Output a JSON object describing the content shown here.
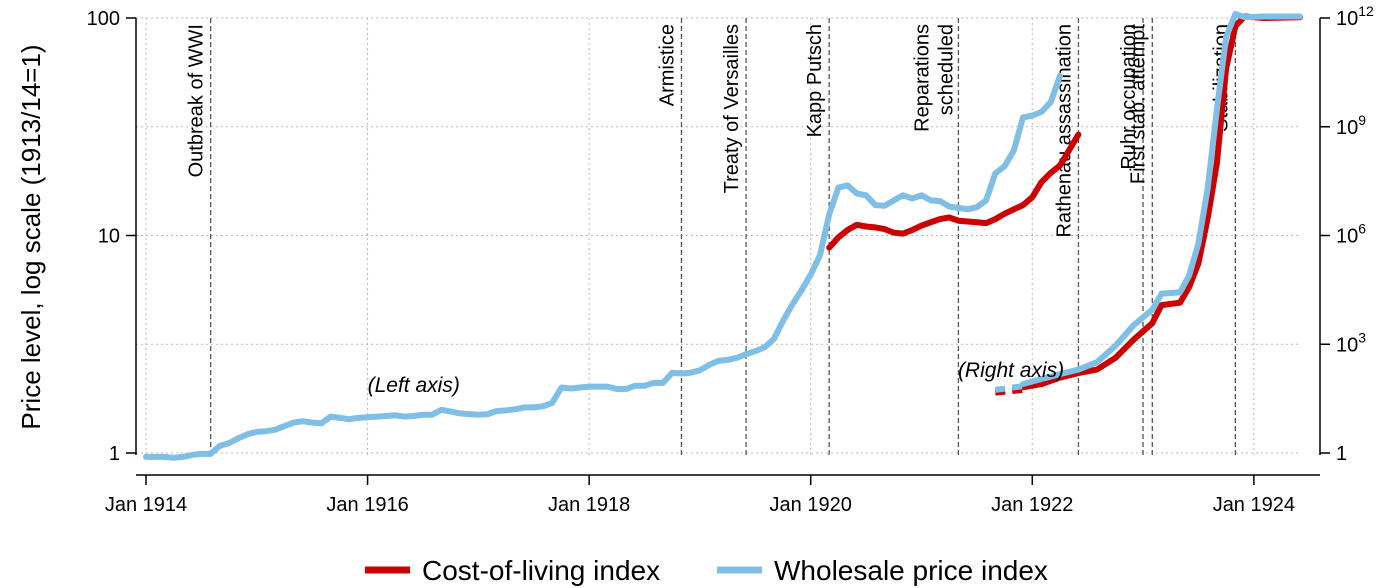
{
  "chart_data": {
    "type": "line",
    "ylabel": "Price level, log scale (1913/14=1)",
    "x_range": [
      "1914-01",
      "1924-06"
    ],
    "x_ticks": [
      {
        "date": "1914-01",
        "label": "Jan 1914"
      },
      {
        "date": "1916-01",
        "label": "Jan 1916"
      },
      {
        "date": "1918-01",
        "label": "Jan 1918"
      },
      {
        "date": "1920-01",
        "label": "Jan 1920"
      },
      {
        "date": "1922-01",
        "label": "Jan 1922"
      },
      {
        "date": "1924-01",
        "label": "Jan 1924"
      }
    ],
    "left_axis": {
      "scale": "log",
      "range": [
        1,
        100
      ],
      "ticks": [
        {
          "value": 1,
          "label": "1"
        },
        {
          "value": 10,
          "label": "10"
        },
        {
          "value": 100,
          "label": "100"
        }
      ]
    },
    "right_axis": {
      "scale": "log",
      "range": [
        1,
        1000000000000
      ],
      "ticks": [
        {
          "value": 1,
          "base": "1",
          "exp": ""
        },
        {
          "value": 1000,
          "base": "10",
          "exp": "3"
        },
        {
          "value": 1000000,
          "base": "10",
          "exp": "6"
        },
        {
          "value": 1000000000,
          "base": "10",
          "exp": "9"
        },
        {
          "value": 1000000000000,
          "base": "10",
          "exp": "12"
        }
      ]
    },
    "grid": true,
    "legend_position": "bottom",
    "events": [
      {
        "date": "1914-08",
        "label": "Outbreak of WWI"
      },
      {
        "date": "1918-11",
        "label": "Armistice"
      },
      {
        "date": "1919-06",
        "label": "Treaty of Versailles"
      },
      {
        "date": "1920-03",
        "label": "Kapp Putsch"
      },
      {
        "date": "1921-05",
        "label": "Reparations|scheduled"
      },
      {
        "date": "1922-06",
        "label": "Rathenau assassination"
      },
      {
        "date": "1923-01",
        "label": "Ruhr occupation"
      },
      {
        "date": "1923-02",
        "label": "First stab. attempt"
      },
      {
        "date": "1923-11",
        "label": "Stabilization"
      }
    ],
    "annotations": [
      {
        "text": "(Left axis)",
        "date": "1916-06",
        "value": 2.0
      },
      {
        "text": "(Right axis)",
        "date": "1922-00",
        "value": 2.0
      }
    ],
    "series": [
      {
        "name": "Cost-of-living index",
        "color": "#cc0000",
        "segments": [
          {
            "axis": "left",
            "style": "solid",
            "points": [
              [
                "1920-03",
                8.8
              ],
              [
                "1920-04",
                9.8
              ],
              [
                "1920-05",
                10.6
              ],
              [
                "1920-06",
                11.2
              ],
              [
                "1920-07",
                11.0
              ],
              [
                "1920-08",
                10.9
              ],
              [
                "1920-09",
                10.7
              ],
              [
                "1920-10",
                10.3
              ],
              [
                "1920-11",
                10.2
              ],
              [
                "1920-12",
                10.6
              ],
              [
                "1921-01",
                11.1
              ],
              [
                "1921-02",
                11.5
              ],
              [
                "1921-03",
                11.9
              ],
              [
                "1921-04",
                12.1
              ],
              [
                "1921-05",
                11.7
              ],
              [
                "1921-06",
                11.6
              ],
              [
                "1921-07",
                11.5
              ],
              [
                "1921-08",
                11.4
              ],
              [
                "1921-09",
                11.9
              ],
              [
                "1921-10",
                12.6
              ],
              [
                "1921-11",
                13.2
              ],
              [
                "1921-12",
                13.8
              ],
              [
                "1922-01",
                15.0
              ],
              [
                "1922-02",
                17.6
              ],
              [
                "1922-03",
                19.4
              ],
              [
                "1922-04",
                21.0
              ],
              [
                "1922-05",
                24.7
              ],
              [
                "1922-06",
                29.1
              ]
            ]
          },
          {
            "axis": "right",
            "style": "dashed",
            "points": [
              [
                "1921-09",
                46
              ],
              [
                "1921-12",
                55
              ]
            ]
          },
          {
            "axis": "right",
            "style": "solid",
            "points": [
              [
                "1922-00",
                65
              ],
              [
                "1922-02",
                80
              ],
              [
                "1922-04",
                120
              ],
              [
                "1922-06",
                160
              ],
              [
                "1922-08",
                200
              ],
              [
                "1922-10",
                420
              ],
              [
                "1922-12",
                1350
              ],
              [
                "1923-02",
                3800
              ],
              [
                "1923-03",
                12000
              ],
              [
                "1923-05",
                14000
              ],
              [
                "1923-06",
                38000
              ],
              [
                "1923-07",
                170000
              ],
              [
                "1923-08",
                3000000
              ],
              [
                "1923-09",
                100000000
              ],
              [
                "1923-10",
                40000000000
              ],
              [
                "1923-11",
                600000000000
              ],
              [
                "1923-12",
                1100000000000
              ],
              [
                "1924-02",
                1000000000000
              ],
              [
                "1924-06",
                1050000000000
              ]
            ]
          }
        ]
      },
      {
        "name": "Wholesale price index",
        "color": "#7fbfe6",
        "segments": [
          {
            "axis": "left",
            "style": "solid",
            "points": [
              [
                "1914-01",
                0.96
              ],
              [
                "1914-02",
                0.96
              ],
              [
                "1914-03",
                0.96
              ],
              [
                "1914-04",
                0.95
              ],
              [
                "1914-05",
                0.96
              ],
              [
                "1914-06",
                0.98
              ],
              [
                "1914-07",
                0.99
              ],
              [
                "1914-08",
                0.99
              ],
              [
                "1914-09",
                1.08
              ],
              [
                "1914-10",
                1.11
              ],
              [
                "1914-11",
                1.17
              ],
              [
                "1914-12",
                1.22
              ],
              [
                "1915-01",
                1.25
              ],
              [
                "1915-02",
                1.26
              ],
              [
                "1915-03",
                1.28
              ],
              [
                "1915-04",
                1.33
              ],
              [
                "1915-05",
                1.38
              ],
              [
                "1915-06",
                1.4
              ],
              [
                "1915-07",
                1.38
              ],
              [
                "1915-08",
                1.37
              ],
              [
                "1915-09",
                1.47
              ],
              [
                "1915-10",
                1.45
              ],
              [
                "1915-11",
                1.43
              ],
              [
                "1915-12",
                1.45
              ],
              [
                "1916-01",
                1.46
              ],
              [
                "1916-02",
                1.47
              ],
              [
                "1916-03",
                1.48
              ],
              [
                "1916-04",
                1.49
              ],
              [
                "1916-05",
                1.47
              ],
              [
                "1916-06",
                1.48
              ],
              [
                "1916-07",
                1.5
              ],
              [
                "1916-08",
                1.5
              ],
              [
                "1916-09",
                1.58
              ],
              [
                "1916-10",
                1.55
              ],
              [
                "1916-11",
                1.52
              ],
              [
                "1916-12",
                1.51
              ],
              [
                "1917-01",
                1.5
              ],
              [
                "1917-02",
                1.51
              ],
              [
                "1917-03",
                1.56
              ],
              [
                "1917-04",
                1.57
              ],
              [
                "1917-05",
                1.59
              ],
              [
                "1917-06",
                1.62
              ],
              [
                "1917-07",
                1.62
              ],
              [
                "1917-08",
                1.64
              ],
              [
                "1917-09",
                1.7
              ],
              [
                "1917-10",
                2.0
              ],
              [
                "1917-11",
                1.98
              ],
              [
                "1917-12",
                2.0
              ],
              [
                "1918-01",
                2.02
              ],
              [
                "1918-02",
                2.02
              ],
              [
                "1918-03",
                2.02
              ],
              [
                "1918-04",
                1.97
              ],
              [
                "1918-05",
                1.97
              ],
              [
                "1918-06",
                2.04
              ],
              [
                "1918-07",
                2.04
              ],
              [
                "1918-08",
                2.1
              ],
              [
                "1918-09",
                2.1
              ],
              [
                "1918-10",
                2.34
              ],
              [
                "1918-11",
                2.32
              ],
              [
                "1918-12",
                2.34
              ],
              [
                "1919-01",
                2.4
              ],
              [
                "1919-02",
                2.54
              ],
              [
                "1919-03",
                2.65
              ],
              [
                "1919-04",
                2.68
              ],
              [
                "1919-05",
                2.74
              ],
              [
                "1919-06",
                2.85
              ],
              [
                "1919-07",
                2.94
              ],
              [
                "1919-08",
                3.06
              ],
              [
                "1919-09",
                3.34
              ],
              [
                "1919-10",
                4.05
              ],
              [
                "1919-11",
                4.8
              ],
              [
                "1919-12",
                5.6
              ],
              [
                "1920-01",
                6.6
              ],
              [
                "1920-02",
                8.1
              ],
              [
                "1920-03",
                12.5
              ],
              [
                "1920-04",
                16.6
              ],
              [
                "1920-05",
                17.0
              ],
              [
                "1920-06",
                15.6
              ],
              [
                "1920-07",
                15.3
              ],
              [
                "1920-08",
                13.8
              ],
              [
                "1920-09",
                13.7
              ],
              [
                "1920-10",
                14.5
              ],
              [
                "1920-11",
                15.3
              ],
              [
                "1920-12",
                14.8
              ],
              [
                "1921-01",
                15.3
              ],
              [
                "1921-02",
                14.5
              ],
              [
                "1921-03",
                14.4
              ],
              [
                "1921-04",
                13.6
              ],
              [
                "1921-05",
                13.4
              ],
              [
                "1921-06",
                13.2
              ],
              [
                "1921-07",
                13.5
              ],
              [
                "1921-08",
                14.5
              ],
              [
                "1921-09",
                19.3
              ],
              [
                "1921-10",
                20.8
              ],
              [
                "1921-11",
                24.6
              ],
              [
                "1921-12",
                34.9
              ],
              [
                "1922-01",
                35.6
              ],
              [
                "1922-02",
                37.0
              ],
              [
                "1922-03",
                41.0
              ],
              [
                "1922-04",
                54.3
              ]
            ]
          },
          {
            "axis": "right",
            "style": "dashed",
            "points": [
              [
                "1921-09",
                55
              ],
              [
                "1921-12",
                70
              ]
            ]
          },
          {
            "axis": "right",
            "style": "solid",
            "points": [
              [
                "1922-00",
                80
              ],
              [
                "1922-02",
                110
              ],
              [
                "1922-04",
                150
              ],
              [
                "1922-06",
                200
              ],
              [
                "1922-08",
                320
              ],
              [
                "1922-10",
                900
              ],
              [
                "1922-12",
                3400
              ],
              [
                "1923-02",
                9000
              ],
              [
                "1923-03",
                25000
              ],
              [
                "1923-05",
                27000
              ],
              [
                "1923-06",
                80000
              ],
              [
                "1923-07",
                600000
              ],
              [
                "1923-08",
                20000000
              ],
              [
                "1923-09",
                3000000000
              ],
              [
                "1923-10",
                300000000000
              ],
              [
                "1923-11",
                1300000000000
              ],
              [
                "1923-12",
                1050000000000
              ],
              [
                "1924-02",
                1100000000000
              ],
              [
                "1924-06",
                1100000000000
              ]
            ]
          }
        ]
      }
    ]
  },
  "legend": {
    "items": [
      {
        "label": "Cost-of-living index",
        "color": "#cc0000"
      },
      {
        "label": "Wholesale price index",
        "color": "#7fbfe6"
      }
    ]
  }
}
